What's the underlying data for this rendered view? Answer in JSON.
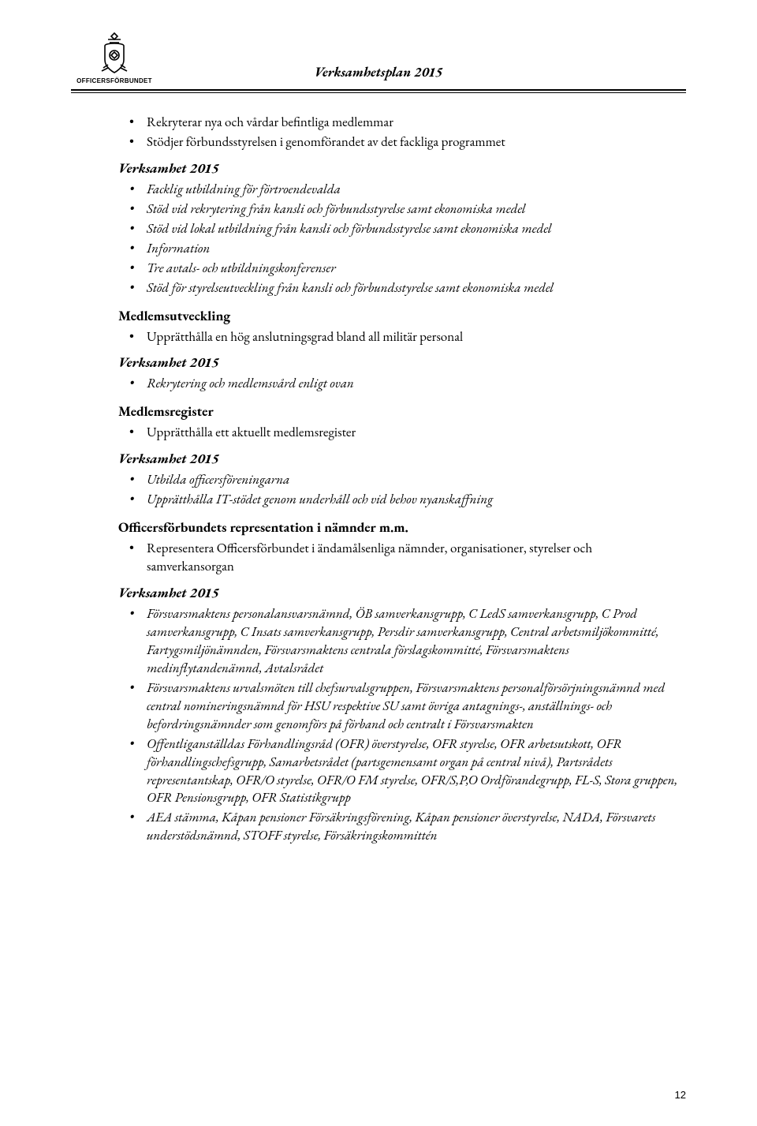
{
  "header": {
    "logo_label": "OFFICERSFÖRBUNDET",
    "doc_title": "Verksamhetsplan 2015"
  },
  "page_number": "12",
  "sections": [
    {
      "heading": null,
      "heading_style": null,
      "items": [
        "Rekryterar nya och vårdar befintliga medlemmar",
        "Stödjer förbundsstyrelsen i genomförandet av det fackliga programmet"
      ],
      "italic": false
    },
    {
      "heading": "Verksamhet 2015",
      "heading_style": "bi",
      "items": [
        "Facklig utbildning för förtroendevalda",
        "Stöd vid rekrytering från kansli och förbundsstyrelse samt ekonomiska medel",
        "Stöd vid lokal utbildning från kansli och förbundsstyrelse samt ekonomiska medel",
        "Information",
        "Tre avtals- och utbildningskonferenser",
        "Stöd för styrelseutveckling från kansli och förbundsstyrelse samt ekonomiska medel"
      ],
      "italic": true
    },
    {
      "heading": "Medlemsutveckling",
      "heading_style": "b",
      "items": [
        "Upprätthålla en hög anslutningsgrad bland all militär personal"
      ],
      "italic": false
    },
    {
      "heading": "Verksamhet 2015",
      "heading_style": "bi",
      "items": [
        "Rekrytering och medlemsvård enligt ovan"
      ],
      "italic": true
    },
    {
      "heading": "Medlemsregister",
      "heading_style": "b",
      "items": [
        "Upprätthålla ett aktuellt medlemsregister"
      ],
      "italic": false
    },
    {
      "heading": "Verksamhet 2015",
      "heading_style": "bi",
      "items": [
        "Utbilda officersföreningarna",
        "Upprätthålla IT-stödet genom underhåll och vid behov nyanskaffning"
      ],
      "italic": true
    },
    {
      "heading": "Officersförbundets representation i nämnder m.m.",
      "heading_style": "b",
      "items": [
        "Representera Officersförbundet i ändamålsenliga nämnder, organisationer, styrelser och samverkansorgan"
      ],
      "italic": false
    },
    {
      "heading": "Verksamhet 2015",
      "heading_style": "bi",
      "items": [
        "Försvarsmaktens personalansvarsnämnd, ÖB samverkansgrupp, C LedS samverkansgrupp, C Prod samverkansgrupp, C Insats samverkansgrupp, Persdir samverkansgrupp, Central arbetsmiljökommitté, Fartygsmiljönämnden, Försvarsmaktens centrala förslagskommitté, Försvarsmaktens medinflytandenämnd, Avtalsrådet",
        "Försvarsmaktens urvalsmöten till chefsurvalsgruppen, Försvarsmaktens personalförsörjningsnämnd med central nomineringsnämnd för HSU respektive SU samt övriga antagnings-, anställnings- och befordringsnämnder som genomförs på förband och centralt i Försvarsmakten",
        "Offentliganställdas Förhandlingsråd (OFR) överstyrelse, OFR styrelse, OFR arbetsutskott, OFR förhandlingschefsgrupp, Samarbetsrådet (partsgemensamt organ på central nivå), Partsrådets representantskap, OFR/O styrelse, OFR/O FM styrelse, OFR/S,P,O Ordförandegrupp, FL-S, Stora gruppen, OFR Pensionsgrupp, OFR Statistikgrupp",
        "AEA stämma, Kåpan pensioner Försäkringsförening, Kåpan pensioner överstyrelse, NADA, Försvarets understödsnämnd, STOFF styrelse, Försäkringskommittén"
      ],
      "italic": true
    }
  ]
}
